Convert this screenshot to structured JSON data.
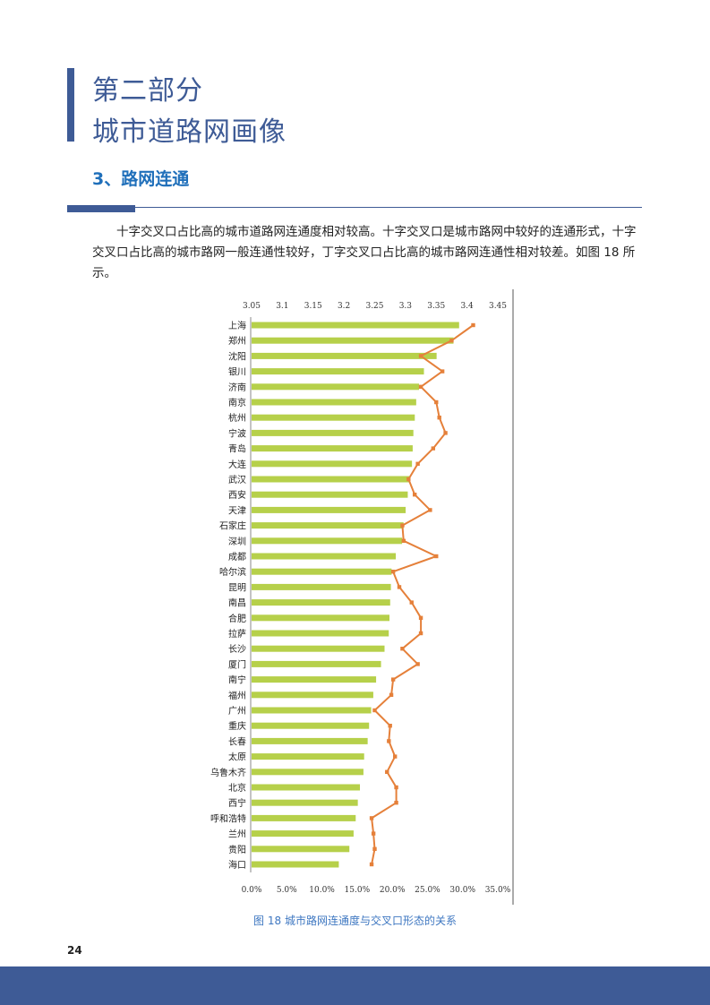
{
  "header": {
    "title_line1": "第二部分",
    "title_line2": "城市道路网画像",
    "section_title": "3、路网连通"
  },
  "body_text": "十字交叉口占比高的城市道路网连通度相对较高。十字交叉口是城市路网中较好的连通形式，十字交叉口占比高的城市路网一般连通性较好，丁字交叉口占比高的城市路网连通性相对较差。如图 18 所示。",
  "chart_data": {
    "type": "bar",
    "orientation": "horizontal",
    "title": "",
    "categories": [
      "上海",
      "郑州",
      "沈阳",
      "银川",
      "济南",
      "南京",
      "杭州",
      "宁波",
      "青岛",
      "大连",
      "武汉",
      "西安",
      "天津",
      "石家庄",
      "深圳",
      "成都",
      "哈尔滨",
      "昆明",
      "南昌",
      "合肥",
      "拉萨",
      "长沙",
      "厦门",
      "南宁",
      "福州",
      "广州",
      "重庆",
      "长春",
      "太原",
      "乌鲁木齐",
      "北京",
      "西宁",
      "呼和浩特",
      "兰州",
      "贵阳",
      "海口"
    ],
    "series": [
      {
        "name": "十字交叉口占比",
        "color": "#b6d04a",
        "axis": "bottom",
        "values": [
          29.5,
          28.7,
          26.3,
          24.5,
          23.8,
          23.4,
          23.2,
          23.0,
          22.9,
          22.8,
          22.4,
          22.2,
          21.9,
          21.6,
          21.4,
          20.5,
          19.9,
          19.8,
          19.7,
          19.6,
          19.5,
          18.9,
          18.4,
          17.7,
          17.3,
          17.0,
          16.7,
          16.5,
          16.0,
          15.9,
          15.4,
          15.1,
          14.8,
          14.5,
          13.9,
          12.4
        ]
      },
      {
        "name": "路网连通度",
        "color": "#e5803a",
        "axis": "top",
        "values": [
          3.41,
          3.375,
          3.325,
          3.36,
          3.325,
          3.35,
          3.355,
          3.365,
          3.345,
          3.32,
          3.305,
          3.315,
          3.34,
          3.295,
          3.297,
          3.35,
          3.28,
          3.29,
          3.31,
          3.325,
          3.325,
          3.295,
          3.32,
          3.28,
          3.277,
          3.25,
          3.275,
          3.273,
          3.283,
          3.27,
          3.285,
          3.285,
          3.245,
          3.248,
          3.25,
          3.245
        ]
      }
    ],
    "x_axis_bottom": {
      "range": [
        0,
        35
      ],
      "ticks": [
        "0.0%",
        "5.0%",
        "10.0%",
        "15.0%",
        "20.0%",
        "25.0%",
        "30.0%",
        "35.0%"
      ]
    },
    "x_axis_top": {
      "range": [
        3.05,
        3.45
      ],
      "ticks": [
        "3.05",
        "3.1",
        "3.15",
        "3.2",
        "3.25",
        "3.3",
        "3.35",
        "3.4",
        "3.45"
      ]
    },
    "grid": false,
    "legend": "none"
  },
  "caption": "图 18  城市路网连通度与交叉口形态的关系",
  "page_number": "24"
}
